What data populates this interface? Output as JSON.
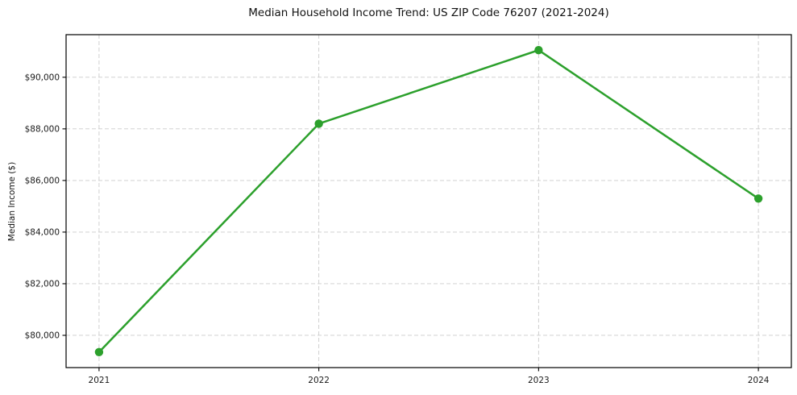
{
  "chart": {
    "title": "Median Household Income Trend: US ZIP Code 76207 (2021-2024)",
    "ylabel": "Median Income ($)"
  },
  "chart_data": {
    "type": "line",
    "title": "Median Household Income Trend: US ZIP Code 76207 (2021-2024)",
    "xlabel": "",
    "ylabel": "Median Income ($)",
    "categories": [
      "2021",
      "2022",
      "2023",
      "2024"
    ],
    "x": [
      2021,
      2022,
      2023,
      2024
    ],
    "values": [
      79350,
      88200,
      91050,
      85300
    ],
    "xlim": [
      2020.85,
      2024.15
    ],
    "ylim": [
      78750,
      91650
    ],
    "yticks": [
      80000,
      82000,
      84000,
      86000,
      88000,
      90000
    ],
    "ytick_labels": [
      "$80,000",
      "$82,000",
      "$84,000",
      "$86,000",
      "$88,000",
      "$90,000"
    ],
    "grid": true,
    "grid_style": "dashed",
    "legend": "none",
    "line_color": "#2ca02c",
    "marker": "circle",
    "marker_size": 10.4,
    "line_width": 2.5,
    "grid_color": "#cbcbcb",
    "spine_color": "#000000",
    "text_color": "#1a1a1a",
    "background": "#ffffff"
  }
}
